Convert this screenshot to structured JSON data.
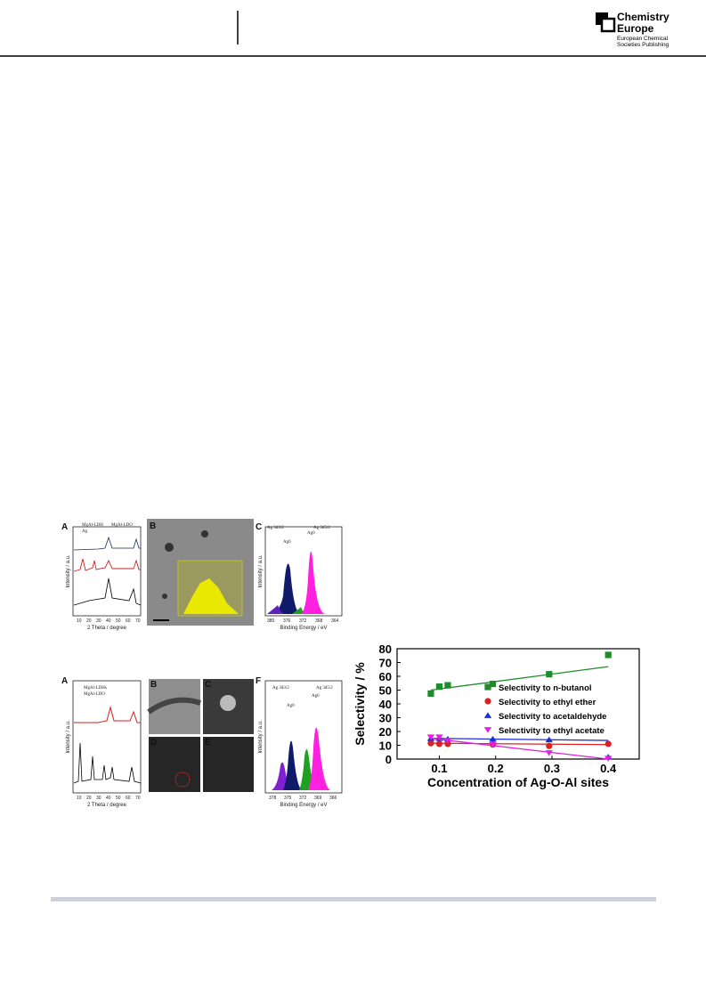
{
  "header": {
    "brand": "Chemistry",
    "brand2": "Europe",
    "publisher": "European Chemical",
    "publisher2": "Societies Publishing"
  },
  "figure1": {
    "a": {
      "label": "A",
      "legend": [
        "MgAl-LDH",
        "MgAl-LDO",
        "Ag"
      ],
      "ylabel": "Intensity / a.u.",
      "xlabel": "2 Theta / degree",
      "xticks": [
        10,
        20,
        30,
        40,
        50,
        60,
        70
      ]
    },
    "b": {
      "label": "B"
    },
    "c": {
      "label": "C",
      "ylabel": "Intensity / a.u.",
      "xlabel": "Binding Energy / eV",
      "xticks": [
        380,
        376,
        372,
        368,
        364
      ],
      "peaks": [
        "Ag 3d5/2",
        "Ag 3d3/2",
        "Ag0",
        "Ag0"
      ]
    }
  },
  "figure2": {
    "a": {
      "label": "A",
      "legend": [
        "MgAl-LDHs",
        "MgAl-LDO"
      ],
      "ylabel": "Intensity / a.u.",
      "xlabel": "2 Theta / degree",
      "xticks": [
        10,
        20,
        30,
        40,
        50,
        60,
        70
      ]
    },
    "b": {
      "label": "B"
    },
    "c": {
      "label": "C"
    },
    "d": {
      "label": "D"
    },
    "e": {
      "label": "E"
    },
    "f": {
      "label": "F",
      "ylabel": "Intensity / a.u.",
      "xlabel": "Binding Energy / eV",
      "xticks": [
        378,
        375,
        372,
        369,
        366
      ],
      "peaks": [
        "Ag 3d5/2",
        "Ag 3d3/2",
        "Ag0",
        "Ag0"
      ]
    }
  },
  "chart_data": {
    "type": "scatter",
    "xlabel": "Concentration of Ag-O-Al sites",
    "ylabel": "Selectivity / %",
    "x": [
      0.085,
      0.1,
      0.115,
      0.195,
      0.295,
      0.4
    ],
    "xlim": [
      0.025,
      0.455
    ],
    "xticks": [
      0.1,
      0.2,
      0.3,
      0.4
    ],
    "ylim": [
      0,
      80
    ],
    "yticks": [
      0,
      10,
      20,
      30,
      40,
      50,
      60,
      70,
      80
    ],
    "fit_x": [
      0.085,
      0.4
    ],
    "series": [
      {
        "name": "Selectivity to n-butanol",
        "color": "#1e8c2a",
        "marker": "square",
        "values": [
          47.5,
          52.5,
          53.5,
          54.5,
          61.5,
          75.5
        ],
        "fit": [
          50,
          67
        ]
      },
      {
        "name": "Selectivity to ethyl ether",
        "color": "#e02020",
        "marker": "circle",
        "values": [
          11.5,
          11,
          11,
          10.5,
          9.5,
          11
        ],
        "fit": [
          11.5,
          10.5
        ]
      },
      {
        "name": "Selectivity to acetaldehyde",
        "color": "#1a2fd6",
        "marker": "triangle",
        "values": [
          15,
          15,
          14.5,
          14.5,
          14,
          1.5
        ],
        "fit": [
          15,
          13.5
        ]
      },
      {
        "name": "Selectivity to ethyl acetate",
        "color": "#e020e0",
        "marker": "triangle-down",
        "values": [
          16,
          16,
          13.5,
          10.5,
          4.5,
          0.5
        ],
        "fit": [
          15,
          0
        ]
      }
    ]
  }
}
